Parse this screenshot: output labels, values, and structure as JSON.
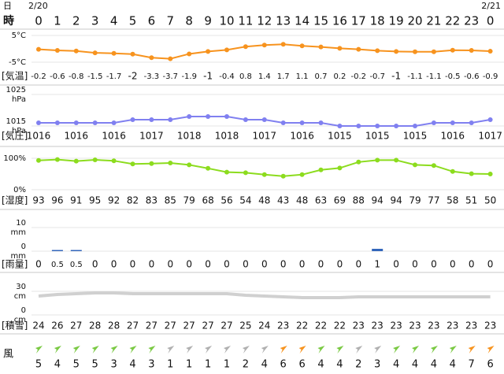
{
  "header": {
    "day_label": "日",
    "hour_label": "時",
    "dates": [
      "2/20",
      "2/21"
    ],
    "hours": [
      0,
      1,
      2,
      3,
      4,
      5,
      6,
      7,
      8,
      9,
      10,
      11,
      12,
      13,
      14,
      15,
      16,
      17,
      18,
      19,
      20,
      21,
      22,
      23,
      0
    ]
  },
  "temperature": {
    "label": "[気温]",
    "color": "#f7931e",
    "ylim": [
      -5,
      5
    ],
    "yticks": [
      {
        "value": 5,
        "label": "5°C"
      },
      {
        "value": -5,
        "label": "-5°C"
      }
    ],
    "values": [
      -0.2,
      -0.6,
      -0.8,
      -1.5,
      -1.7,
      -2,
      -3.3,
      -3.7,
      -1.9,
      -1,
      -0.4,
      0.8,
      1.4,
      1.7,
      1.1,
      0.7,
      0.2,
      -0.2,
      -0.7,
      -1,
      -1.1,
      -1.1,
      -0.5,
      -0.6,
      -0.9
    ]
  },
  "pressure": {
    "label": "[気圧]",
    "color": "#8080f0",
    "ylim": [
      1015,
      1025
    ],
    "yticks": [
      {
        "value": 1025,
        "label": "1025",
        "unit": "hPa"
      },
      {
        "value": 1015,
        "label": "1015",
        "unit": "hPa"
      }
    ],
    "values": [
      1016,
      1016,
      1016,
      1016,
      1016,
      1017,
      1017,
      1017,
      1018,
      1018,
      1018,
      1017,
      1017,
      1016,
      1016,
      1016,
      1015,
      1015,
      1015,
      1015,
      1015,
      1016,
      1016,
      1016,
      1017
    ]
  },
  "humidity": {
    "label": "[湿度]",
    "color": "#8cdc1e",
    "ylim": [
      0,
      100
    ],
    "yticks": [
      {
        "value": 100,
        "label": "100%"
      },
      {
        "value": 0,
        "label": "0%"
      }
    ],
    "values": [
      93,
      96,
      91,
      95,
      92,
      82,
      83,
      85,
      79,
      68,
      56,
      54,
      48,
      43,
      48,
      63,
      69,
      88,
      94,
      94,
      79,
      77,
      58,
      51,
      50
    ]
  },
  "rain": {
    "label": "[雨量]",
    "color": "#3366bb",
    "ylim": [
      0,
      10
    ],
    "yticks": [
      {
        "value": 10,
        "label": "10",
        "unit": "mm"
      },
      {
        "value": 0,
        "label": "0",
        "unit": "mm"
      }
    ],
    "values": [
      0,
      0.5,
      0.5,
      0,
      0,
      0,
      0,
      0,
      0,
      0,
      0,
      0,
      0,
      0,
      0,
      0,
      0,
      0,
      1,
      0,
      0,
      0,
      0,
      0,
      0
    ]
  },
  "snow": {
    "label": "[積雪]",
    "color": "#d0d0d0",
    "ylim": [
      0,
      30
    ],
    "yticks": [
      {
        "value": 30,
        "label": "30",
        "unit": "cm"
      },
      {
        "value": 0,
        "label": "0",
        "unit": "cm"
      }
    ],
    "values": [
      24,
      26,
      27,
      28,
      28,
      27,
      27,
      27,
      27,
      27,
      27,
      25,
      24,
      23,
      22,
      22,
      22,
      23,
      23,
      23,
      23,
      23,
      23,
      23,
      23
    ]
  },
  "wind": {
    "label": "風",
    "values": [
      5,
      4,
      5,
      5,
      3,
      4,
      3,
      1,
      1,
      1,
      1,
      2,
      4,
      6,
      6,
      4,
      4,
      2,
      3,
      4,
      4,
      4,
      4,
      7,
      6
    ],
    "colors": [
      "#7ac943",
      "#7ac943",
      "#7ac943",
      "#7ac943",
      "#7ac943",
      "#7ac943",
      "#7ac943",
      "#b0b0b0",
      "#b0b0b0",
      "#b0b0b0",
      "#b0b0b0",
      "#b0b0b0",
      "#b0b0b0",
      "#f7931e",
      "#f7931e",
      "#7ac943",
      "#7ac943",
      "#b0b0b0",
      "#b0b0b0",
      "#7ac943",
      "#7ac943",
      "#7ac943",
      "#7ac943",
      "#f7931e",
      "#f7931e"
    ]
  }
}
